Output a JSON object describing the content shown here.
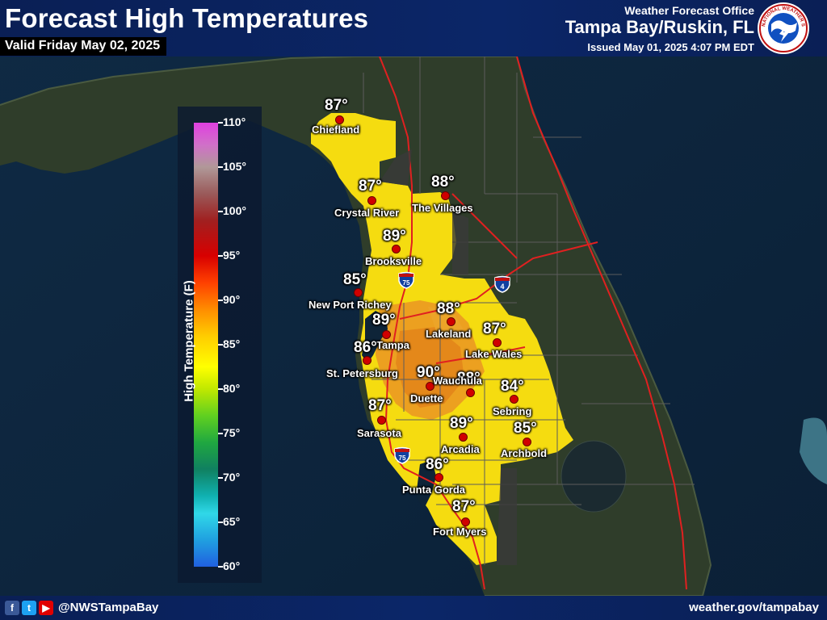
{
  "header": {
    "title": "Forecast High Temperatures",
    "valid": "Valid Friday May 02, 2025",
    "office_top": "Weather Forecast Office",
    "office_name": "Tampa Bay/Ruskin, FL",
    "issued": "Issued May 01, 2025 4:07 PM EDT",
    "logo_text": "NATIONAL WEATHER SERVICE"
  },
  "footer": {
    "handle": "@NWSTampaBay",
    "site": "weather.gov/tampabay",
    "social_icons": [
      "facebook-icon",
      "twitter-icon",
      "youtube-icon"
    ]
  },
  "legend": {
    "title": "High Temperature (F)",
    "ticks": [
      "110°",
      "105°",
      "100°",
      "95°",
      "90°",
      "85°",
      "80°",
      "75°",
      "70°",
      "65°",
      "60°"
    ]
  },
  "highways": [
    "75",
    "4",
    "75"
  ],
  "cities": [
    {
      "name": "Chiefland",
      "temp": "87°"
    },
    {
      "name": "Crystal River",
      "temp": "87°"
    },
    {
      "name": "The Villages",
      "temp": "88°"
    },
    {
      "name": "Brooksville",
      "temp": "89°"
    },
    {
      "name": "New Port Richey",
      "temp": "85°"
    },
    {
      "name": "Tampa",
      "temp": "89°"
    },
    {
      "name": "Lakeland",
      "temp": "88°"
    },
    {
      "name": "Lake Wales",
      "temp": "87°"
    },
    {
      "name": "St. Petersburg",
      "temp": "86°"
    },
    {
      "name": "Duette",
      "temp": "90°"
    },
    {
      "name": "Wauchula",
      "temp": "88°"
    },
    {
      "name": "Sebring",
      "temp": "84°"
    },
    {
      "name": "Sarasota",
      "temp": "87°"
    },
    {
      "name": "Arcadia",
      "temp": "89°"
    },
    {
      "name": "Archbold",
      "temp": "85°"
    },
    {
      "name": "Punta Gorda",
      "temp": "86°"
    },
    {
      "name": "Fort Myers",
      "temp": "87°"
    }
  ]
}
